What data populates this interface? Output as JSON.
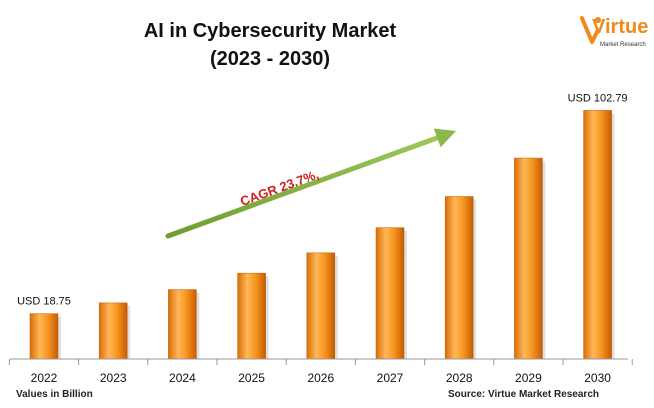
{
  "title": {
    "line1": "AI in Cybersecurity Market",
    "line2": "(2023 - 2030)"
  },
  "logo": {
    "word": "Virtue",
    "sub": "Market Research",
    "color": "#f08a1c"
  },
  "notes": {
    "values": "Values in Billion",
    "source": "Source: Virtue Market Research"
  },
  "colors": {
    "bar_light": "#ffb14a",
    "bar_mid": "#f58a12",
    "bar_dark": "#c86206",
    "arrow": "#82b440",
    "cagr_text": "#cc1f1f"
  },
  "chart_data": {
    "type": "bar",
    "categories": [
      "2022",
      "2023",
      "2024",
      "2025",
      "2026",
      "2027",
      "2028",
      "2029",
      "2030"
    ],
    "values": [
      18.75,
      23.2,
      28.7,
      35.5,
      43.9,
      54.3,
      67.2,
      83.1,
      102.79
    ],
    "title": "AI in Cybersecurity Market (2023 - 2030)",
    "ylim": [
      0,
      110
    ],
    "grid": false,
    "data_labels": [
      {
        "category": "2022",
        "text": "USD 18.75"
      },
      {
        "category": "2030",
        "text": "USD 102.79"
      }
    ],
    "annotation": "CAGR 23.7%,"
  }
}
